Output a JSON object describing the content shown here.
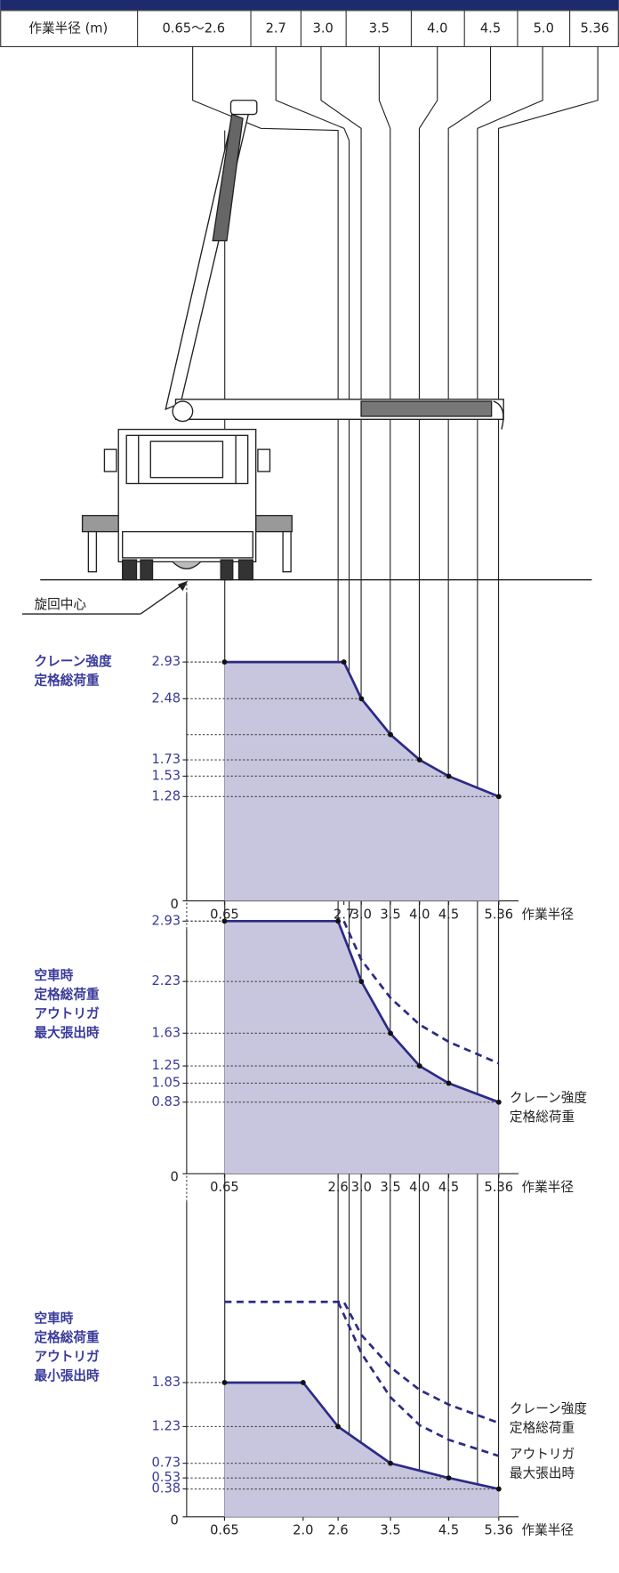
{
  "header_table": {
    "cells": [
      "作業半径 (m)",
      "0.65〜2.6",
      "2.7",
      "3.0",
      "3.5",
      "4.0",
      "4.5",
      "5.0",
      "5.36"
    ]
  },
  "annotation": "旋回中心",
  "chart_data": [
    {
      "type": "line",
      "title": [
        "クレーン強度",
        "定格総荷重"
      ],
      "x_label": "作業半径",
      "xlim": [
        0,
        5.7
      ],
      "xticks": [
        0.65,
        2.7,
        {
          "value": 3,
          "label": "3.0"
        },
        3.5,
        {
          "value": 4,
          "label": "4.0"
        },
        4.5,
        5.36
      ],
      "ylim": [
        0,
        3.2
      ],
      "yticks": [
        0,
        1.28,
        1.53,
        1.73,
        2.48,
        2.93
      ],
      "series": [
        {
          "color": "#2b2b86",
          "fill": "#c8c5de",
          "style": "solid",
          "markers": true,
          "x": [
            0.65,
            2.7,
            3.0,
            3.5,
            4.0,
            4.5,
            5.36
          ],
          "values": [
            2.93,
            2.93,
            2.48,
            2.04,
            1.73,
            1.53,
            1.28
          ]
        }
      ]
    },
    {
      "type": "line",
      "title": [
        "空車時",
        "定格総荷重",
        "アウトリガ",
        "最大張出時"
      ],
      "x_label": "作業半径",
      "xlim": [
        0,
        5.7
      ],
      "xticks": [
        0.65,
        2.6,
        {
          "value": 3,
          "label": "3.0"
        },
        3.5,
        {
          "value": 4,
          "label": "4.0"
        },
        4.5,
        5.36
      ],
      "ylim": [
        0,
        3.2
      ],
      "yticks": [
        0,
        0.83,
        1.05,
        1.25,
        1.63,
        2.23,
        2.93
      ],
      "series": [
        {
          "color": "#2b2b86",
          "fill": "#c8c5de",
          "style": "solid",
          "markers": true,
          "x": [
            0.65,
            2.6,
            3.0,
            3.5,
            4.0,
            4.5,
            5.36
          ],
          "values": [
            2.93,
            2.93,
            2.23,
            1.63,
            1.25,
            1.05,
            0.83
          ]
        },
        {
          "name": [
            "クレーン強度",
            "定格総荷重"
          ],
          "color": "#2b2b86",
          "style": "dashed",
          "markers": false,
          "x": [
            2.7,
            3.0,
            3.5,
            4.0,
            4.5,
            5.36
          ],
          "values": [
            2.93,
            2.48,
            2.04,
            1.73,
            1.53,
            1.28
          ]
        }
      ]
    },
    {
      "type": "line",
      "title": [
        "空車時",
        "定格総荷重",
        "アウトリガ",
        "最小張出時"
      ],
      "x_label": "作業半径",
      "xlim": [
        0,
        5.7
      ],
      "xticks": [
        0.65,
        {
          "value": 2,
          "label": "2.0"
        },
        2.6,
        3.5,
        4.5,
        5.36
      ],
      "ylim": [
        0,
        3.2
      ],
      "yticks": [
        0,
        0.38,
        0.53,
        0.73,
        1.23,
        1.83
      ],
      "series": [
        {
          "color": "#2b2b86",
          "fill": "#c8c5de",
          "style": "solid",
          "markers": true,
          "x": [
            0.65,
            2.0,
            2.6,
            3.5,
            4.5,
            5.36
          ],
          "values": [
            1.83,
            1.83,
            1.23,
            0.73,
            0.53,
            0.38
          ]
        },
        {
          "name": [
            "クレーン強度",
            "定格総荷重"
          ],
          "color": "#2b2b86",
          "style": "dashed",
          "markers": false,
          "x": [
            0.65,
            2.7,
            3.0,
            3.5,
            4.0,
            4.5,
            5.36
          ],
          "values": [
            2.93,
            2.93,
            2.48,
            2.04,
            1.73,
            1.53,
            1.28
          ]
        },
        {
          "name": [
            "アウトリガ",
            "最大張出時"
          ],
          "color": "#2b2b86",
          "style": "dashed",
          "markers": false,
          "x": [
            2.6,
            3.0,
            3.5,
            4.0,
            4.5,
            5.36
          ],
          "values": [
            2.93,
            2.23,
            1.63,
            1.25,
            1.05,
            0.83
          ]
        }
      ]
    }
  ]
}
